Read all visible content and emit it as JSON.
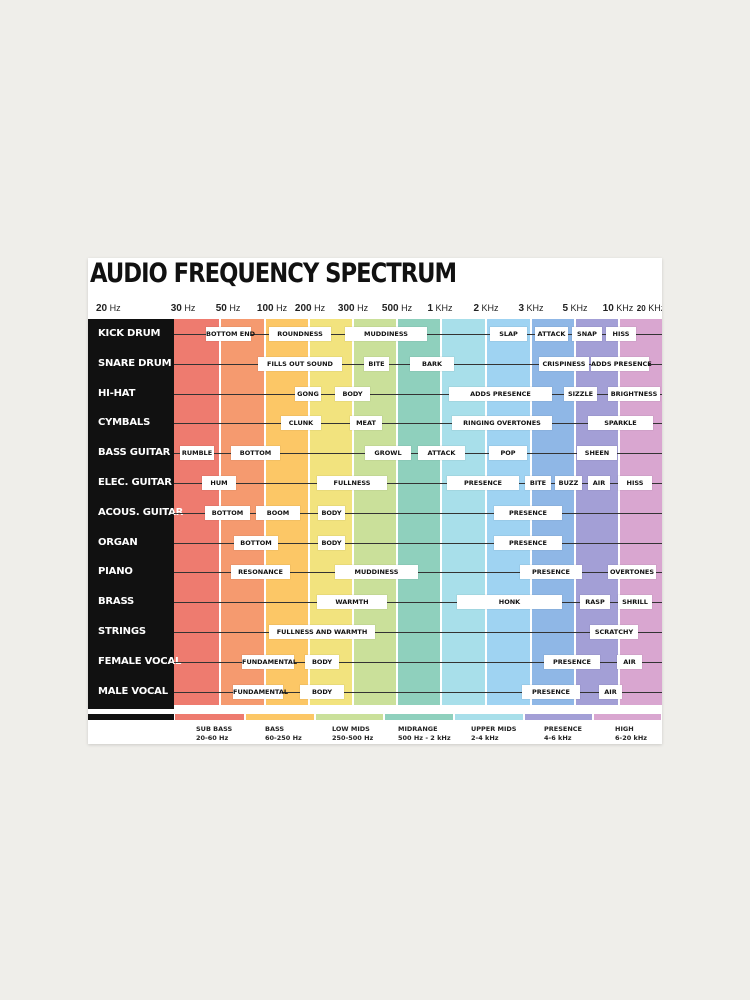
{
  "title": "AUDIO FREQUENCY SPECTRUM",
  "freqs": [
    {
      "v": "20",
      "u": "Hz"
    },
    {
      "v": "30",
      "u": "Hz"
    },
    {
      "v": "50",
      "u": "Hz"
    },
    {
      "v": "100",
      "u": "Hz"
    },
    {
      "v": "200",
      "u": "Hz"
    },
    {
      "v": "300",
      "u": "Hz"
    },
    {
      "v": "500",
      "u": "Hz"
    },
    {
      "v": "1",
      "u": "KHz"
    },
    {
      "v": "2",
      "u": "KHz"
    },
    {
      "v": "3",
      "u": "KHz"
    },
    {
      "v": "5",
      "u": "KHz"
    },
    {
      "v": "10",
      "u": "KHz"
    },
    {
      "v": "20",
      "u": "KHz"
    }
  ],
  "band_colors": [
    "#ee7b6f",
    "#f59a6f",
    "#fcc766",
    "#f2e37e",
    "#cae09a",
    "#8fd0bd",
    "#a8dfea",
    "#9fd3f2",
    "#8fb7e6",
    "#a39fd6",
    "#d9a6d0"
  ],
  "rows": [
    {
      "name": "KICK DRUM",
      "labels": [
        "BOTTOM END",
        "ROUNDNESS",
        "MUDDINESS",
        "SLAP",
        "ATTACK",
        "SNAP",
        "HISS"
      ]
    },
    {
      "name": "SNARE DRUM",
      "labels": [
        "FILLS OUT SOUND",
        "BITE",
        "BARK",
        "CRISPINESS",
        "ADDS PRESENCE"
      ]
    },
    {
      "name": "HI-HAT",
      "labels": [
        "GONG",
        "BODY",
        "ADDS PRESENCE",
        "SIZZLE",
        "BRIGHTNESS"
      ]
    },
    {
      "name": "CYMBALS",
      "labels": [
        "CLUNK",
        "MEAT",
        "RINGING OVERTONES",
        "SPARKLE"
      ]
    },
    {
      "name": "BASS GUITAR",
      "labels": [
        "RUMBLE",
        "BOTTOM",
        "GROWL",
        "ATTACK",
        "POP",
        "SHEEN"
      ]
    },
    {
      "name": "ELEC. GUITAR",
      "labels": [
        "HUM",
        "FULLNESS",
        "PRESENCE",
        "BITE",
        "BUZZ",
        "AIR",
        "HISS"
      ]
    },
    {
      "name": "ACOUS. GUITAR",
      "labels": [
        "BOTTOM",
        "BOOM",
        "BODY",
        "PRESENCE"
      ]
    },
    {
      "name": "ORGAN",
      "labels": [
        "BOTTOM",
        "BODY",
        "PRESENCE"
      ]
    },
    {
      "name": "PIANO",
      "labels": [
        "RESONANCE",
        "MUDDINESS",
        "PRESENCE",
        "OVERTONES"
      ]
    },
    {
      "name": "BRASS",
      "labels": [
        "WARMTH",
        "HONK",
        "RASP",
        "SHRILL"
      ]
    },
    {
      "name": "STRINGS",
      "labels": [
        "FULLNESS AND WARMTH",
        "SCRATCHY"
      ]
    },
    {
      "name": "FEMALE VOCAL",
      "labels": [
        "FUNDAMENTAL",
        "BODY",
        "PRESENCE",
        "AIR"
      ]
    },
    {
      "name": "MALE VOCAL",
      "labels": [
        "FUNDAMENTAL",
        "BODY",
        "PRESENCE",
        "AIR"
      ]
    }
  ],
  "ranges": [
    {
      "name": "SUB BASS",
      "range": "20-60 Hz",
      "color": "#ee7b6f"
    },
    {
      "name": "BASS",
      "range": "60-250 Hz",
      "color": "#fcc766"
    },
    {
      "name": "LOW MIDS",
      "range": "250-500 Hz",
      "color": "#cae09a"
    },
    {
      "name": "MIDRANGE",
      "range": "500 Hz - 2 kHz",
      "color": "#8fd0bd"
    },
    {
      "name": "UPPER MIDS",
      "range": "2-4 kHz",
      "color": "#a8dfea"
    },
    {
      "name": "PRESENCE",
      "range": "4-6 kHz",
      "color": "#a39fd6"
    },
    {
      "name": "HIGH",
      "range": "6-20 kHz",
      "color": "#d9a6d0"
    }
  ],
  "ranges_left_strip_color": "#111111"
}
